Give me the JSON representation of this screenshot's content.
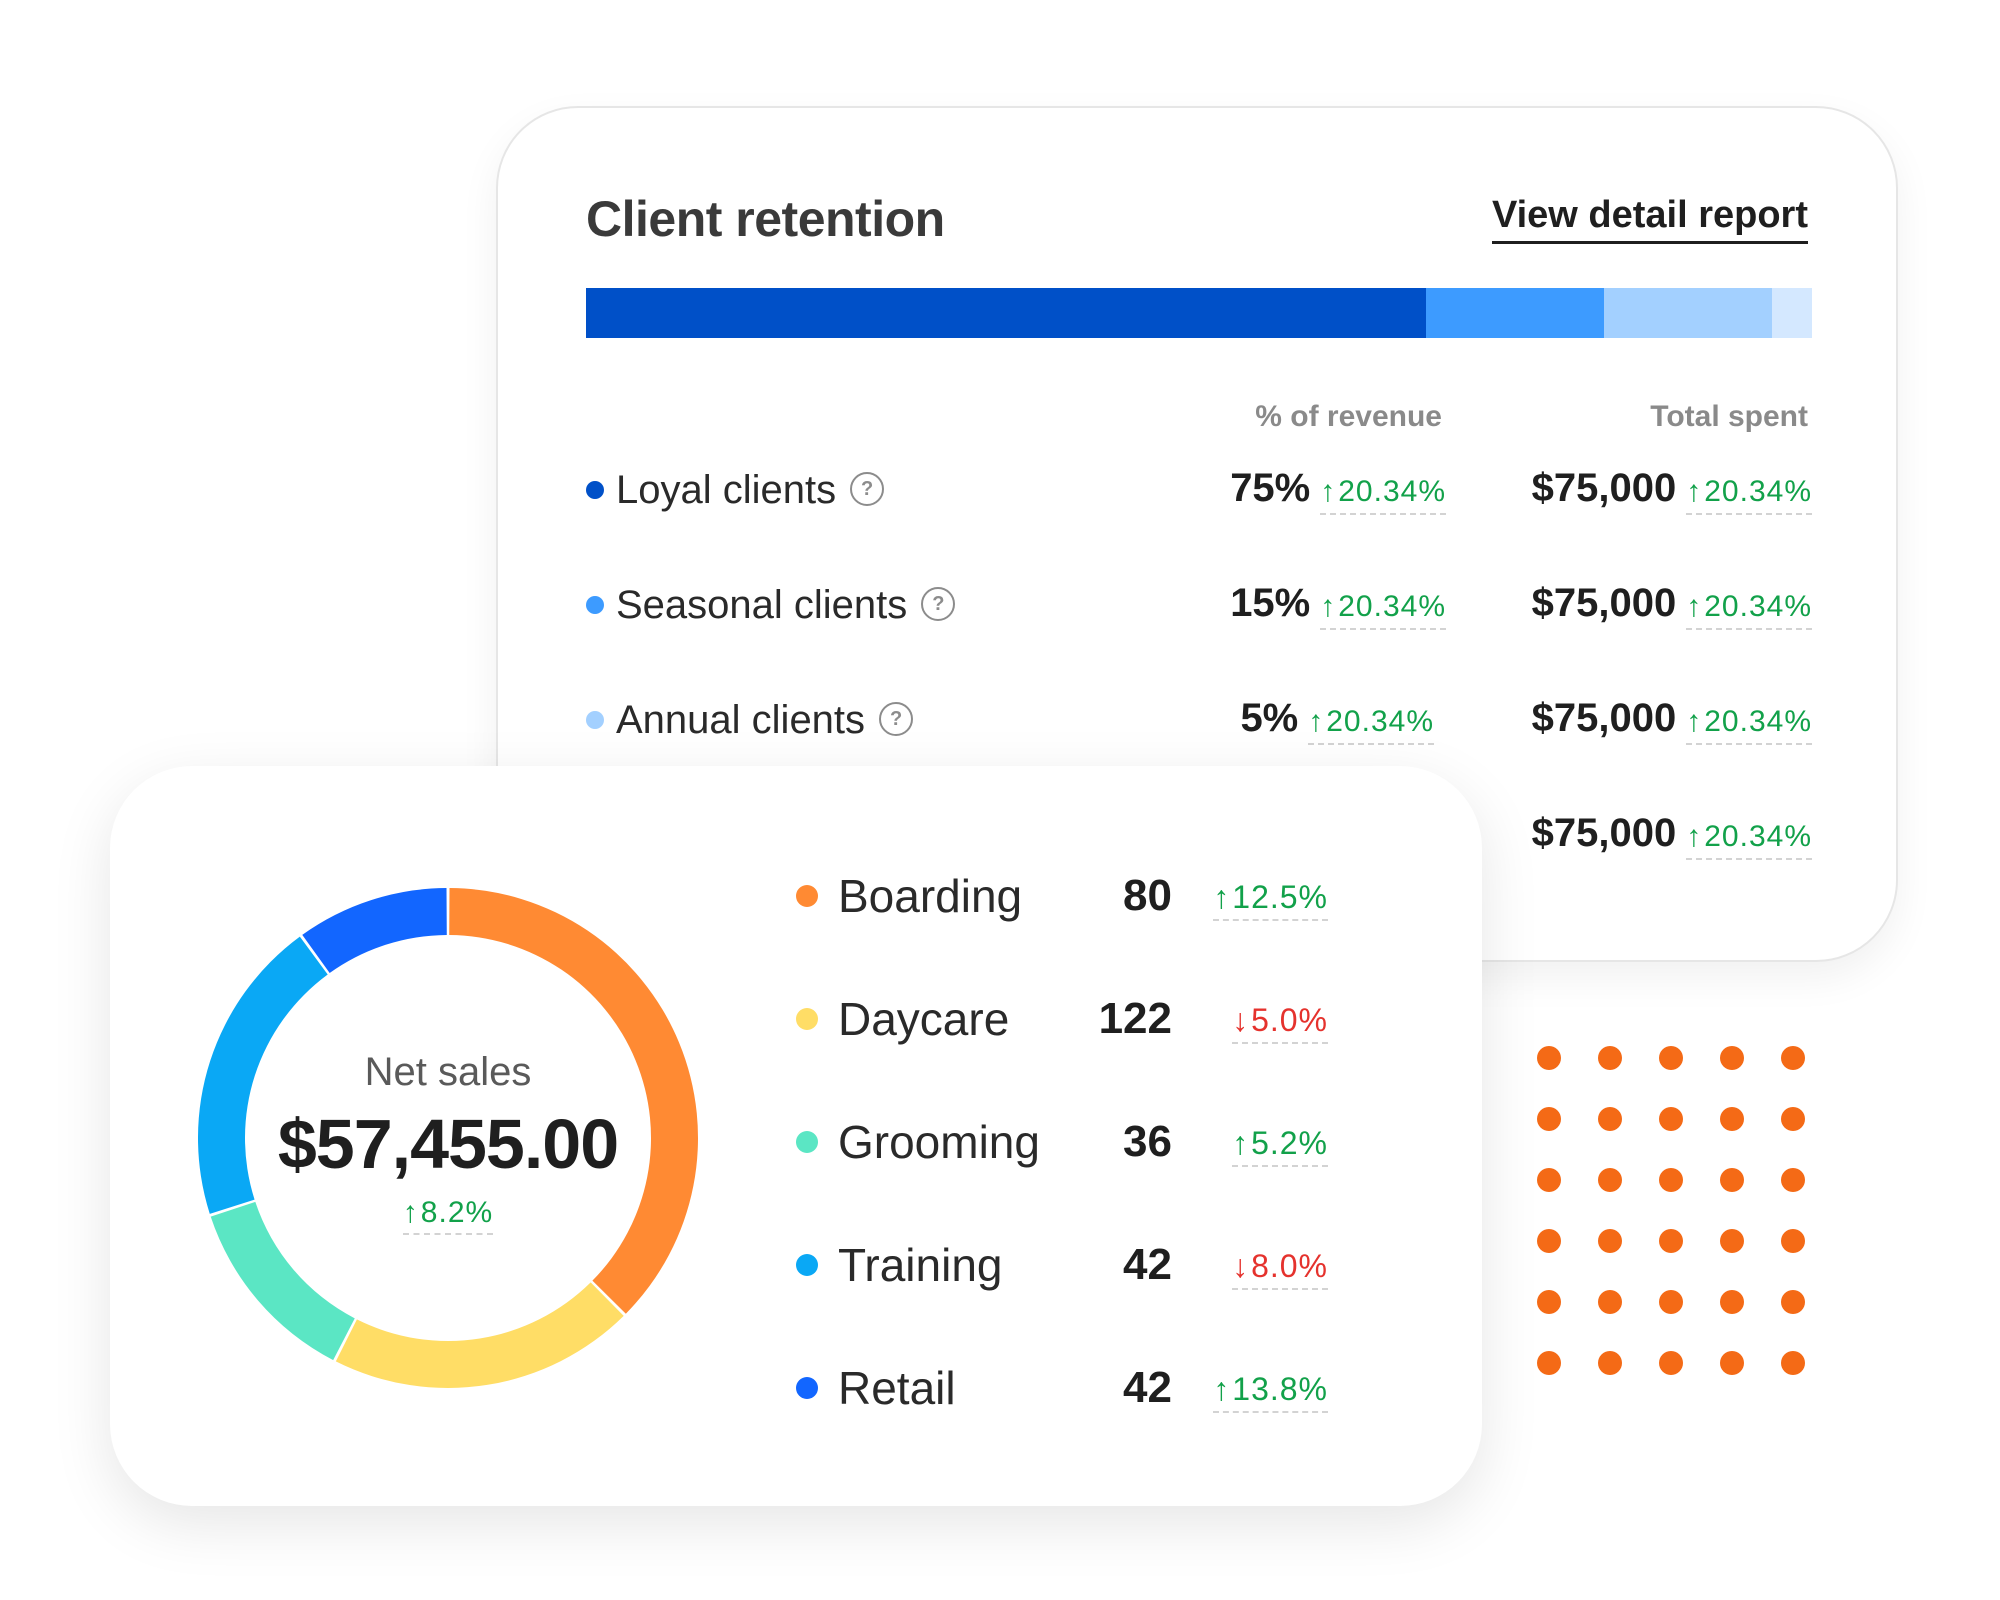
{
  "retention": {
    "title": "Client retention",
    "link": "View detail report",
    "stack": [
      {
        "value": 0.685,
        "color": "#0050c8"
      },
      {
        "value": 0.145,
        "color": "#3d9bff"
      },
      {
        "value": 0.137,
        "color": "#a3d0ff"
      },
      {
        "value": 0.033,
        "color": "#d4e8ff"
      }
    ],
    "headers": {
      "revenue": "% of revenue",
      "spent": "Total spent"
    },
    "rows": [
      {
        "label": "Loyal clients",
        "color": "#0050c8",
        "revenue": "75%",
        "revenue_trend": "20.34%",
        "spent": "$75,000",
        "spent_trend": "20.34%"
      },
      {
        "label": "Seasonal clients",
        "color": "#3d9bff",
        "revenue": "15%",
        "revenue_trend": "20.34%",
        "spent": "$75,000",
        "spent_trend": "20.34%"
      },
      {
        "label": "Annual clients",
        "color": "#a3d0ff",
        "revenue": "5%",
        "revenue_trend": "20.34%",
        "spent": "$75,000",
        "spent_trend": "20.34%"
      },
      {
        "spent": "$75,000",
        "spent_trend": "20.34%"
      }
    ]
  },
  "sales": {
    "net_label": "Net sales",
    "net_value": "$57,455.00",
    "net_trend": "8.2%",
    "categories": [
      {
        "label": "Boarding",
        "count": "80",
        "trend": "12.5%",
        "direction": "up",
        "color": "#ff8a33"
      },
      {
        "label": "Daycare",
        "count": "122",
        "trend": "5.0%",
        "direction": "down",
        "color": "#ffdd66"
      },
      {
        "label": "Grooming",
        "count": "36",
        "trend": "5.2%",
        "direction": "up",
        "color": "#5be6c4"
      },
      {
        "label": "Training",
        "count": "42",
        "trend": "8.0%",
        "direction": "down",
        "color": "#0aa8f5"
      },
      {
        "label": "Retail",
        "count": "42",
        "trend": "13.8%",
        "direction": "up",
        "color": "#1266ff"
      }
    ],
    "donut_share": [
      0.375,
      0.2,
      0.125,
      0.2,
      0.1
    ]
  },
  "icons": {
    "help": "question-mark-icon",
    "up": "arrow-up-icon",
    "down": "arrow-down-icon"
  },
  "colors": {
    "up": "#12a14a",
    "down": "#e5322d",
    "dots": "#f46a16"
  }
}
